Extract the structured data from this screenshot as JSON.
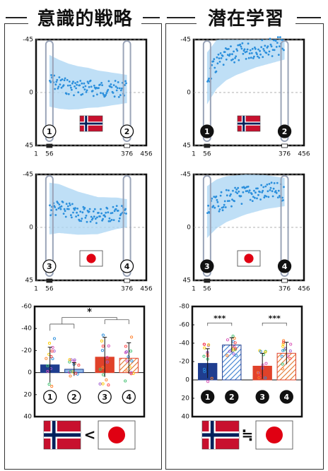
{
  "headings": {
    "left": "意識的戦略",
    "right": "潜在学習"
  },
  "axis_ticks": {
    "trial_y": [
      "-45",
      "0",
      "45"
    ],
    "trial_x": [
      "1",
      "56",
      "376",
      "456"
    ],
    "bar_y": [
      "-60",
      "-40",
      "-20",
      "0",
      "20",
      "40"
    ]
  },
  "markers": {
    "conscious": [
      "①",
      "②",
      "③",
      "④"
    ],
    "implicit": [
      "❶",
      "❷",
      "❸",
      "❹"
    ]
  },
  "significance": {
    "conscious": "*",
    "implicit": [
      "***",
      "***"
    ]
  },
  "comparison": {
    "left": "<",
    "right": "≒"
  },
  "colors": {
    "blue": "#2b8fdc",
    "band": "#aad4f3",
    "navy": "#1f3d8f",
    "orange_red": "#e0422a",
    "norway_red": "#c8102e",
    "norway_blue": "#00205b",
    "japan_red": "#e00012"
  },
  "icons": {
    "norway": "norway-flag-icon",
    "japan": "japan-flag-icon"
  },
  "chart_data": [
    {
      "type": "scatter",
      "panel": "conscious-norway",
      "x_range": [
        1,
        456
      ],
      "y_range": [
        -45,
        45
      ],
      "y_inverted": true,
      "segment_markers": [
        56,
        376
      ],
      "series": [
        {
          "x": [
            56,
            96,
            136,
            176,
            216,
            256,
            296,
            336,
            376
          ],
          "y": [
            -10,
            -7,
            -5,
            -4,
            -4,
            -3,
            -3,
            -3,
            -3
          ]
        }
      ]
    },
    {
      "type": "scatter",
      "panel": "implicit-norway",
      "x_range": [
        1,
        456
      ],
      "y_range": [
        -45,
        45
      ],
      "y_inverted": true,
      "segment_markers": [
        56,
        376
      ],
      "series": [
        {
          "x": [
            56,
            96,
            136,
            176,
            216,
            256,
            296,
            336,
            376
          ],
          "y": [
            -12,
            -24,
            -30,
            -33,
            -35,
            -37,
            -38,
            -39,
            -40
          ]
        }
      ]
    },
    {
      "type": "scatter",
      "panel": "conscious-japan",
      "x_range": [
        1,
        456
      ],
      "y_range": [
        -45,
        45
      ],
      "y_inverted": true,
      "segment_markers": [
        56,
        376
      ],
      "series": [
        {
          "x": [
            56,
            96,
            136,
            176,
            216,
            256,
            296,
            336,
            376
          ],
          "y": [
            -16,
            -16,
            -14,
            -12,
            -11,
            -10,
            -11,
            -12,
            -12
          ]
        }
      ]
    },
    {
      "type": "scatter",
      "panel": "implicit-japan",
      "x_range": [
        1,
        456
      ],
      "y_range": [
        -45,
        45
      ],
      "y_inverted": true,
      "segment_markers": [
        56,
        376
      ],
      "series": [
        {
          "x": [
            56,
            96,
            136,
            176,
            216,
            256,
            296,
            336,
            376
          ],
          "y": [
            -13,
            -20,
            -24,
            -26,
            -28,
            -29,
            -30,
            -30,
            -30
          ]
        }
      ]
    },
    {
      "type": "bar",
      "panel": "conscious-bars",
      "categories": [
        "①",
        "②",
        "③",
        "④"
      ],
      "values": [
        -7,
        -3,
        -14,
        -13
      ],
      "errors": [
        16,
        6,
        18,
        14
      ],
      "y_range": [
        -60,
        40
      ],
      "y_inverted": true
    },
    {
      "type": "bar",
      "panel": "implicit-bars",
      "categories": [
        "❶",
        "❷",
        "❸",
        "❹"
      ],
      "values": [
        -18,
        -38,
        -15,
        -29
      ],
      "errors": [
        16,
        8,
        14,
        12
      ],
      "y_range": [
        -80,
        40
      ],
      "y_inverted": true
    }
  ]
}
